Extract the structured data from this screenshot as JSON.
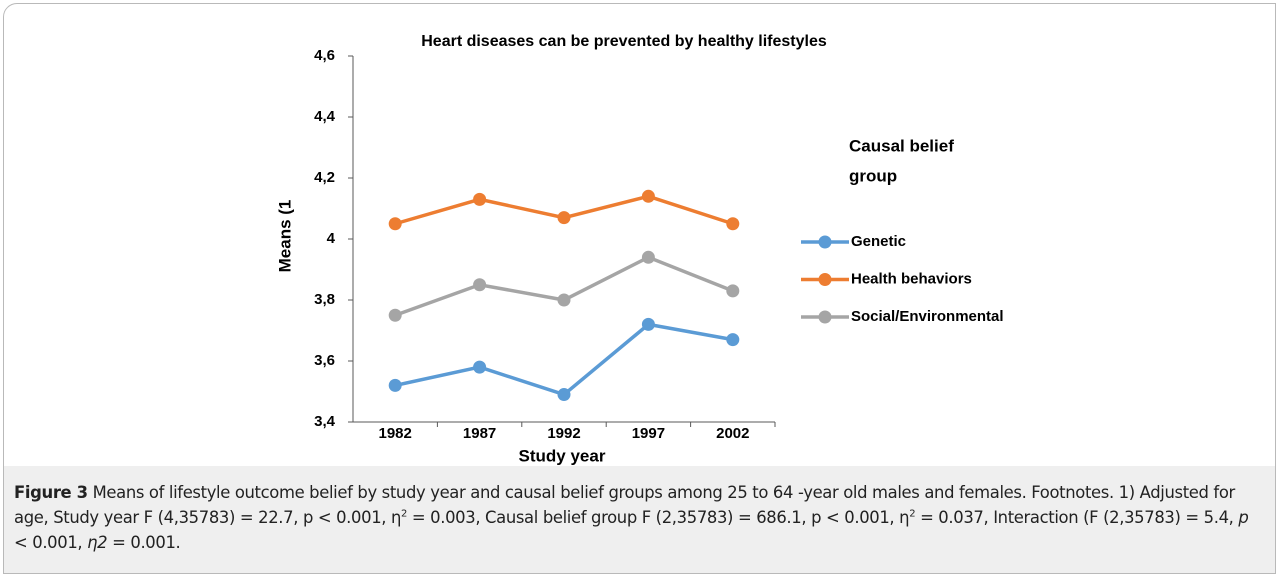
{
  "chart_data": {
    "type": "line",
    "title": "Heart diseases can be prevented by healthy lifestyles",
    "x_label": "Study year",
    "y_label": "Means (1",
    "legend_title": [
      "Causal belief",
      "group"
    ],
    "categories": [
      "1982",
      "1987",
      "1992",
      "1997",
      "2002"
    ],
    "series": [
      {
        "name": "Genetic",
        "color": "#5b9bd5",
        "values": [
          3.52,
          3.58,
          3.49,
          3.72,
          3.67
        ]
      },
      {
        "name": "Health behaviors",
        "color": "#ed7d31",
        "values": [
          4.05,
          4.13,
          4.07,
          4.14,
          4.05
        ]
      },
      {
        "name": "Social/Environmental",
        "color": "#a5a5a5",
        "values": [
          3.75,
          3.85,
          3.8,
          3.94,
          3.83
        ]
      }
    ],
    "ylim": [
      3.4,
      4.6
    ],
    "yticks": [
      {
        "value": 3.4,
        "label": "3,4"
      },
      {
        "value": 3.6,
        "label": "3,6"
      },
      {
        "value": 3.8,
        "label": "3,8"
      },
      4,
      {
        "value": 4.2,
        "label": "4,2"
      },
      {
        "value": 4.4,
        "label": "4,4"
      },
      {
        "value": 4.6,
        "label": "4,6"
      }
    ],
    "grid": false,
    "legend": "right"
  },
  "caption": {
    "label": "Figure 3",
    "parts": [
      " Means of lifestyle outcome belief by study year and causal belief groups among 25 to 64 -year old males and females. Footnotes. 1) Adjusted for age, Study year F (4,35783) = 22.7, p < 0.001, η",
      "2",
      " = 0.003, Causal belief group F (2,35783) = 686.1, p < 0.001, η",
      "2",
      " = 0.037, Interaction (F (2,35783) = 5.4, ",
      "p",
      " < 0.001, ",
      "η2",
      " = 0.001."
    ]
  }
}
